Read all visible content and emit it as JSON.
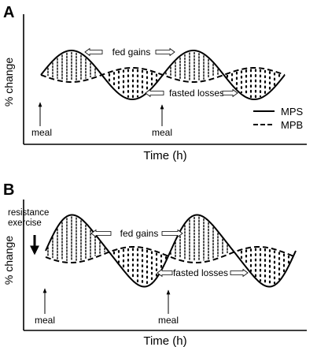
{
  "panels": [
    {
      "letter": "A",
      "ylabel": "% change",
      "xlabel": "Time (h)",
      "fed_label": "fed gains",
      "fasted_label": "fasted losses",
      "meal_labels": [
        "meal",
        "meal"
      ],
      "legend": [
        {
          "label": "MPS",
          "style": "solid"
        },
        {
          "label": "MPB",
          "style": "dashed"
        }
      ]
    },
    {
      "letter": "B",
      "ylabel": "% change",
      "xlabel": "Time (h)",
      "fed_label": "fed gains",
      "fasted_label": "fasted losses",
      "meal_labels": [
        "meal",
        "meal"
      ],
      "exercise_label": [
        "resistance",
        "exercise"
      ]
    }
  ]
}
